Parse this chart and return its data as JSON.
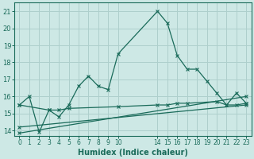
{
  "background_color": "#cde8e5",
  "grid_color": "#aecfcc",
  "line_color": "#1a6b5a",
  "xlabel": "Humidex (Indice chaleur)",
  "xlabel_fontsize": 7,
  "yticks": [
    14,
    15,
    16,
    17,
    18,
    19,
    20,
    21
  ],
  "xtick_labels": [
    "0",
    "1",
    "2",
    "3",
    "4",
    "5",
    "6",
    "7",
    "8",
    "9",
    "10",
    "14",
    "15",
    "16",
    "17",
    "18",
    "19",
    "20",
    "21",
    "22",
    "23"
  ],
  "xtick_positions": [
    0,
    1,
    2,
    3,
    4,
    5,
    6,
    7,
    8,
    9,
    10,
    14,
    15,
    16,
    17,
    18,
    19,
    20,
    21,
    22,
    23
  ],
  "xlim": [
    -0.5,
    23.5
  ],
  "ylim": [
    13.7,
    21.5
  ],
  "line1_x": [
    0,
    1,
    2,
    3,
    4,
    5,
    6,
    7,
    8,
    9,
    10,
    14,
    15,
    16,
    17,
    18,
    19,
    20,
    21,
    22,
    23
  ],
  "line1_y": [
    15.5,
    16.0,
    13.9,
    15.2,
    14.8,
    15.5,
    16.6,
    17.2,
    16.6,
    16.4,
    18.5,
    21.0,
    20.3,
    18.4,
    17.6,
    17.6,
    16.9,
    16.2,
    15.5,
    16.2,
    15.6
  ],
  "line2_x": [
    0,
    3,
    4,
    5,
    10,
    14,
    15,
    16,
    17,
    20,
    21,
    22,
    23
  ],
  "line2_y": [
    15.5,
    15.2,
    15.2,
    15.3,
    15.4,
    15.5,
    15.5,
    15.6,
    15.6,
    15.7,
    15.5,
    15.5,
    15.6
  ],
  "line3_x": [
    0,
    23
  ],
  "line3_y": [
    13.85,
    16.0
  ],
  "line4_x": [
    0,
    23
  ],
  "line4_y": [
    14.2,
    15.5
  ],
  "marker": "x",
  "markersize": 3,
  "linewidth": 0.9
}
